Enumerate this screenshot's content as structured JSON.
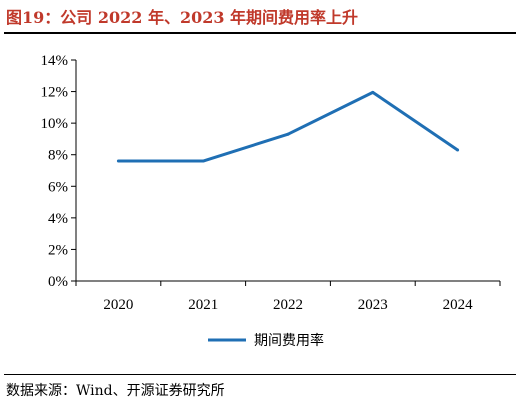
{
  "title": "图19：公司 2022 年、2023 年期间费用率上升",
  "source": "数据来源：Wind、开源证券研究所",
  "chart_data": {
    "type": "line",
    "title": "图19：公司 2022 年、2023 年期间费用率上升",
    "xlabel": "",
    "ylabel": "",
    "categories": [
      "2020",
      "2021",
      "2022",
      "2023",
      "2024"
    ],
    "series": [
      {
        "name": "期间费用率",
        "values": [
          7.6,
          7.6,
          9.3,
          11.95,
          8.3
        ]
      }
    ],
    "ylim": [
      0,
      14
    ],
    "yticks": [
      0,
      2,
      4,
      6,
      8,
      10,
      12,
      14
    ],
    "ytick_labels": [
      "0%",
      "2%",
      "4%",
      "6%",
      "8%",
      "10%",
      "12%",
      "14%"
    ],
    "grid": false,
    "legend": "bottom-center",
    "line_color": "#1f6fb4"
  }
}
